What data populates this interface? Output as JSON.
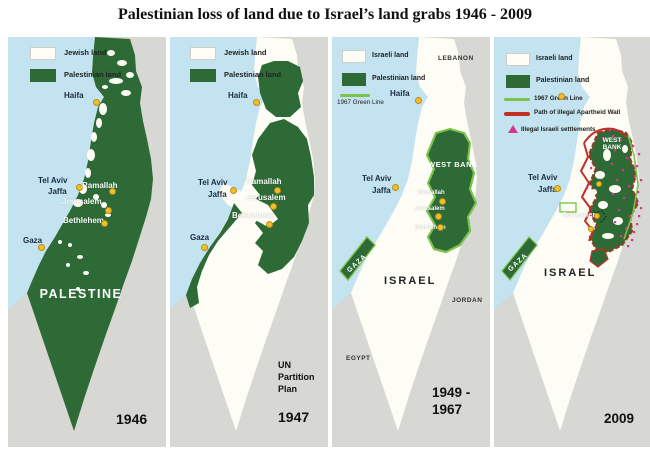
{
  "title": "Palestinian loss of land due to Israel’s land grabs 1946 - 2009",
  "colors": {
    "palestinian_green": "#2d6a35",
    "sea_blue": "#c2e3ef",
    "neighbor_gray": "#d7d7d3",
    "jewish_israeli_white": "#fdfdf6",
    "green_line": "#7dc24a",
    "apartheid_wall_red": "#c03025",
    "settlement_pink": "#d6368f",
    "city_dot_yellow": "#f3c029"
  },
  "panels": [
    {
      "year": "1946",
      "map_label": "PALESTINE",
      "legend": {
        "item1": "Jewish land",
        "item2": "Palestinian land"
      },
      "cities": {
        "haifa": "Haifa",
        "tel_aviv": "Tel Aviv",
        "jaffa": "Jaffa",
        "ramallah": "Ramallah",
        "jerusalem": "Jerusalem",
        "bethlehem": "Bethlehem",
        "gaza": "Gaza"
      }
    },
    {
      "year": "1947",
      "caption": {
        "line1": "UN",
        "line2": "Partition",
        "line3": "Plan"
      },
      "legend": {
        "item1": "Jewish land",
        "item2": "Palestinian land"
      },
      "cities": {
        "haifa": "Haifa",
        "tel_aviv": "Tel Aviv",
        "jaffa": "Jaffa",
        "ramallah": "Ramallah",
        "jerusalem": "Jerusalem",
        "bethlehem": "Bethlehem",
        "gaza": "Gaza"
      }
    },
    {
      "year_line1": "1949 -",
      "year_line2": "1967",
      "map_label": "ISRAEL",
      "region_west_bank": "WEST BANK",
      "region_gaza": "GAZA",
      "legend": {
        "item1": "Israeli land",
        "item2": "Palestinian land",
        "item3": "1967 Green Line"
      },
      "neighbors": {
        "lebanon": "LEBANON",
        "jordan": "JORDAN",
        "egypt": "EGYPT"
      },
      "cities": {
        "haifa": "Haifa",
        "tel_aviv": "Tel Aviv",
        "jaffa": "Jaffa",
        "ramallah": "Ramallah",
        "jerusalem": "Jerusalem",
        "bethlehem": "Bethlehem"
      }
    },
    {
      "year": "2009",
      "map_label": "ISRAEL",
      "region_west_bank": "WEST BANK",
      "region_gaza": "GAZA",
      "legend": {
        "item1": "Israeli land",
        "item2": "Palestinian land",
        "item3": "1967 Green Line",
        "item4": "Path of illegal Apartheid Wall",
        "item5": "Illegal Israeli settlements"
      },
      "cities": {
        "tel_aviv": "Tel Aviv",
        "jaffa": "Jaffa",
        "jerusalem": "Jerusalem"
      }
    }
  ]
}
